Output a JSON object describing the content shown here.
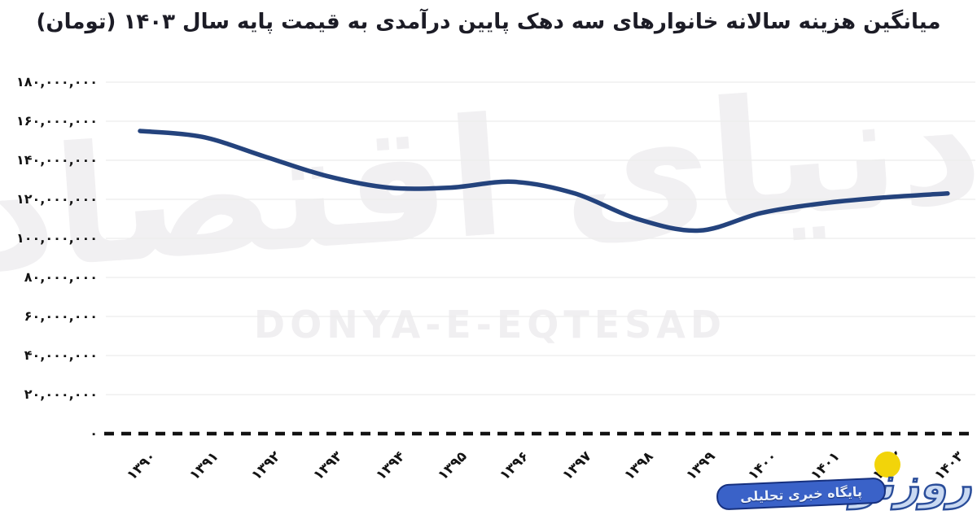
{
  "watermark": {
    "calligraphy": "دنیای اقتصاد",
    "latin": "DONYA-E-EQTESAD"
  },
  "logo": {
    "wordmark": "روزنو",
    "tagline": "پایگاه خبری تحلیلی"
  },
  "colors": {
    "line": "#24437d",
    "grid": "#ececec",
    "zero_axis": "#121212",
    "title_text": "#1c1c26",
    "tick_text": "#141414",
    "watermark": "#f0eff1",
    "logo_fill": "#c9d9f2",
    "logo_stroke": "#2a4d9a",
    "logo_yellow": "#f2d40a",
    "banner_bg": "#3a62c8"
  },
  "chart_data": {
    "type": "line",
    "title": "میانگین هزینه سالانه خانوارهای سه دهک پایین درآمدی به قیمت پایه سال ۱۴۰۳ (تومان)",
    "categories": [
      "۱۳۹۰",
      "۱۳۹۱",
      "۱۳۹۲",
      "۱۳۹۳",
      "۱۳۹۴",
      "۱۳۹۵",
      "۱۳۹۶",
      "۱۳۹۷",
      "۱۳۹۸",
      "۱۳۹۹",
      "۱۴۰۰",
      "۱۴۰۱",
      "۱۴۰۲",
      "۱۴۰۳"
    ],
    "values": [
      155000000,
      152000000,
      142000000,
      132000000,
      126000000,
      126000000,
      129000000,
      123000000,
      110000000,
      104000000,
      113000000,
      118000000,
      121000000,
      123000000
    ],
    "y_tick_labels": [
      "۱۸۰,۰۰۰,۰۰۰",
      "۱۶۰,۰۰۰,۰۰۰",
      "۱۴۰,۰۰۰,۰۰۰",
      "۱۲۰,۰۰۰,۰۰۰",
      "۱۰۰,۰۰۰,۰۰۰",
      "۸۰,۰۰۰,۰۰۰",
      "۶۰,۰۰۰,۰۰۰",
      "۴۰,۰۰۰,۰۰۰",
      "۲۰,۰۰۰,۰۰۰",
      "۰"
    ],
    "ylim": [
      0,
      180000000
    ],
    "y_tick_step": 20000000,
    "grid": true,
    "legend_position": "none",
    "xlabel": "",
    "ylabel": ""
  }
}
